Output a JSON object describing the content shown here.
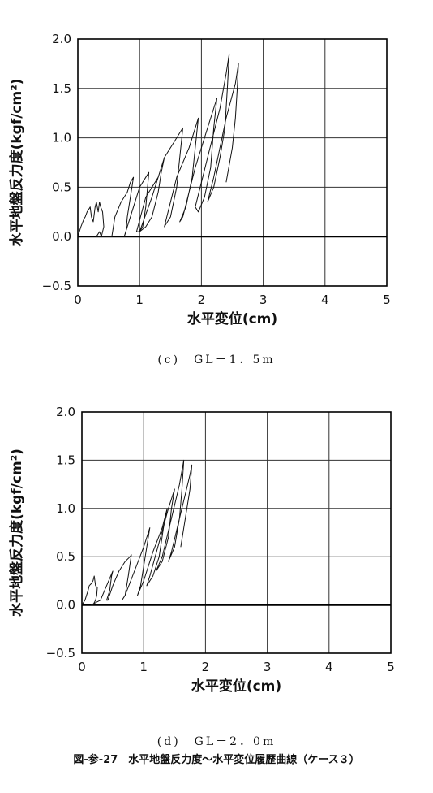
{
  "figure_caption": "図-参-27　水平地盤反力度～水平変位履歴曲線（ケース３）",
  "chart_data": [
    {
      "type": "line",
      "caption": "(c)　GL－1．5m",
      "xlabel": "水平変位(cm)",
      "ylabel": "水平地盤反力度(kgf/cm²)",
      "xlim": [
        0,
        5
      ],
      "ylim": [
        -0.5,
        2.0
      ],
      "x_ticks": [
        "0",
        "1",
        "2",
        "3",
        "4",
        "5"
      ],
      "y_ticks": [
        "−0.5",
        "0.0",
        "0.5",
        "1.0",
        "1.5",
        "2.0"
      ],
      "grid": true,
      "series": [
        {
          "x": [
            0.0,
            0.05,
            0.1,
            0.12,
            0.15,
            0.18,
            0.2,
            0.22,
            0.25,
            0.28,
            0.3,
            0.33,
            0.35,
            0.37,
            0.4,
            0.42,
            0.4,
            0.38,
            0.35,
            0.3,
            0.55,
            0.6,
            0.7,
            0.8,
            0.85,
            0.9,
            0.85,
            0.8,
            0.78,
            0.75,
            0.8,
            0.9,
            1.0,
            1.1,
            1.15,
            1.1,
            1.05,
            1.0,
            0.95,
            1.1,
            1.3,
            1.4,
            1.35,
            1.3,
            1.2,
            1.1,
            1.0,
            1.2,
            1.4,
            1.6,
            1.7,
            1.65,
            1.6,
            1.5,
            1.4,
            1.4,
            1.6,
            1.8,
            1.95,
            1.9,
            1.85,
            1.75,
            1.65,
            1.7,
            1.9,
            2.1,
            2.25,
            2.2,
            2.15,
            2.05,
            1.95,
            1.9,
            2.1,
            2.3,
            2.4,
            2.45,
            2.42,
            2.38,
            2.3,
            2.2,
            2.1,
            2.2,
            2.4,
            2.55,
            2.6,
            2.58,
            2.55,
            2.5,
            2.4
          ],
          "y": [
            0.0,
            0.1,
            0.18,
            0.2,
            0.25,
            0.28,
            0.3,
            0.2,
            0.15,
            0.3,
            0.35,
            0.25,
            0.35,
            0.3,
            0.25,
            0.1,
            0.05,
            0.0,
            0.05,
            0.0,
            0.0,
            0.2,
            0.35,
            0.45,
            0.55,
            0.6,
            0.4,
            0.2,
            0.05,
            0.0,
            0.1,
            0.3,
            0.5,
            0.6,
            0.65,
            0.3,
            0.1,
            0.05,
            0.05,
            0.4,
            0.6,
            0.8,
            0.65,
            0.45,
            0.2,
            0.1,
            0.05,
            0.4,
            0.8,
            1.0,
            1.1,
            0.8,
            0.5,
            0.2,
            0.1,
            0.1,
            0.6,
            0.9,
            1.2,
            0.9,
            0.6,
            0.3,
            0.15,
            0.2,
            0.7,
            1.1,
            1.4,
            1.1,
            0.7,
            0.4,
            0.25,
            0.3,
            0.8,
            1.3,
            1.65,
            1.85,
            1.5,
            1.1,
            0.8,
            0.5,
            0.35,
            0.6,
            1.2,
            1.55,
            1.75,
            1.5,
            1.2,
            0.9,
            0.55
          ]
        }
      ]
    },
    {
      "type": "line",
      "caption": "(d)　GL－2．0m",
      "xlabel": "水平変位(cm)",
      "ylabel": "水平地盤反力度(kgf/cm²)",
      "xlim": [
        0,
        5
      ],
      "ylim": [
        -0.5,
        2.0
      ],
      "x_ticks": [
        "0",
        "1",
        "2",
        "3",
        "4",
        "5"
      ],
      "y_ticks": [
        "−0.5",
        "0.0",
        "0.5",
        "1.0",
        "1.5",
        "2.0"
      ],
      "grid": true,
      "series": [
        {
          "x": [
            0.0,
            0.05,
            0.1,
            0.12,
            0.15,
            0.18,
            0.2,
            0.22,
            0.25,
            0.24,
            0.22,
            0.18,
            0.15,
            0.3,
            0.4,
            0.5,
            0.48,
            0.45,
            0.4,
            0.42,
            0.5,
            0.6,
            0.7,
            0.78,
            0.8,
            0.75,
            0.7,
            0.65,
            0.7,
            0.85,
            1.0,
            1.1,
            1.05,
            1.0,
            0.95,
            0.9,
            1.0,
            1.15,
            1.3,
            1.38,
            1.32,
            1.25,
            1.15,
            1.05,
            1.1,
            1.25,
            1.4,
            1.5,
            1.45,
            1.4,
            1.3,
            1.2,
            1.3,
            1.45,
            1.58,
            1.65,
            1.62,
            1.58,
            1.5,
            1.4,
            1.45,
            1.6,
            1.75,
            1.78,
            1.75,
            1.7,
            1.65,
            1.6
          ],
          "y": [
            0.0,
            0.05,
            0.15,
            0.2,
            0.22,
            0.25,
            0.3,
            0.2,
            0.18,
            0.1,
            0.05,
            0.0,
            0.0,
            0.05,
            0.2,
            0.35,
            0.3,
            0.15,
            0.05,
            0.05,
            0.2,
            0.35,
            0.45,
            0.5,
            0.52,
            0.3,
            0.1,
            0.05,
            0.1,
            0.35,
            0.6,
            0.8,
            0.6,
            0.4,
            0.2,
            0.1,
            0.25,
            0.55,
            0.8,
            1.0,
            0.8,
            0.5,
            0.3,
            0.2,
            0.3,
            0.65,
            1.0,
            1.2,
            1.0,
            0.7,
            0.45,
            0.35,
            0.5,
            0.9,
            1.25,
            1.5,
            1.2,
            0.9,
            0.6,
            0.45,
            0.55,
            0.95,
            1.35,
            1.45,
            1.2,
            1.0,
            0.8,
            0.6
          ]
        }
      ]
    }
  ]
}
